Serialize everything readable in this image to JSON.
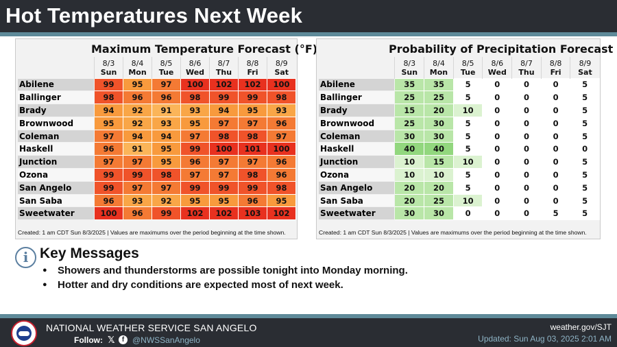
{
  "header": {
    "title": "Hot Temperatures Next Week"
  },
  "max_temp": {
    "title": "Maximum Temperature Forecast (°F)",
    "days": [
      {
        "date": "8/3",
        "day": "Sun"
      },
      {
        "date": "8/4",
        "day": "Mon"
      },
      {
        "date": "8/5",
        "day": "Tue"
      },
      {
        "date": "8/6",
        "day": "Wed"
      },
      {
        "date": "8/7",
        "day": "Thu"
      },
      {
        "date": "8/8",
        "day": "Fri"
      },
      {
        "date": "8/9",
        "day": "Sat"
      }
    ],
    "rows": [
      {
        "loc": "Abilene",
        "values": [
          99,
          95,
          97,
          100,
          102,
          102,
          100
        ]
      },
      {
        "loc": "Ballinger",
        "values": [
          98,
          96,
          96,
          98,
          99,
          99,
          98
        ]
      },
      {
        "loc": "Brady",
        "values": [
          94,
          92,
          91,
          93,
          94,
          95,
          93
        ]
      },
      {
        "loc": "Brownwood",
        "values": [
          95,
          92,
          93,
          95,
          97,
          97,
          96
        ]
      },
      {
        "loc": "Coleman",
        "values": [
          97,
          94,
          94,
          97,
          98,
          98,
          97
        ]
      },
      {
        "loc": "Haskell",
        "values": [
          96,
          91,
          95,
          99,
          100,
          101,
          100
        ]
      },
      {
        "loc": "Junction",
        "values": [
          97,
          97,
          95,
          96,
          97,
          97,
          96
        ]
      },
      {
        "loc": "Ozona",
        "values": [
          99,
          99,
          98,
          97,
          97,
          98,
          96
        ]
      },
      {
        "loc": "San Angelo",
        "values": [
          99,
          97,
          97,
          99,
          99,
          99,
          98
        ]
      },
      {
        "loc": "San Saba",
        "values": [
          96,
          93,
          92,
          95,
          95,
          96,
          95
        ]
      },
      {
        "loc": "Sweetwater",
        "values": [
          100,
          96,
          99,
          102,
          102,
          103,
          102
        ]
      }
    ],
    "note": "Created: 1 am CDT Sun 8/3/2025  |  Values are maximums over the period beginning at the time shown."
  },
  "pop": {
    "title": "Probability of Precipitation Forecast (%)",
    "days": [
      {
        "date": "8/3",
        "day": "Sun"
      },
      {
        "date": "8/4",
        "day": "Mon"
      },
      {
        "date": "8/5",
        "day": "Tue"
      },
      {
        "date": "8/6",
        "day": "Wed"
      },
      {
        "date": "8/7",
        "day": "Thu"
      },
      {
        "date": "8/8",
        "day": "Fri"
      },
      {
        "date": "8/9",
        "day": "Sat"
      }
    ],
    "rows": [
      {
        "loc": "Abilene",
        "values": [
          35,
          35,
          5,
          0,
          0,
          0,
          5
        ]
      },
      {
        "loc": "Ballinger",
        "values": [
          25,
          25,
          5,
          0,
          0,
          0,
          5
        ]
      },
      {
        "loc": "Brady",
        "values": [
          15,
          20,
          10,
          0,
          0,
          0,
          5
        ]
      },
      {
        "loc": "Brownwood",
        "values": [
          25,
          30,
          5,
          0,
          0,
          0,
          5
        ]
      },
      {
        "loc": "Coleman",
        "values": [
          30,
          30,
          5,
          0,
          0,
          0,
          5
        ]
      },
      {
        "loc": "Haskell",
        "values": [
          40,
          40,
          5,
          0,
          0,
          0,
          0
        ]
      },
      {
        "loc": "Junction",
        "values": [
          10,
          15,
          10,
          0,
          0,
          0,
          5
        ]
      },
      {
        "loc": "Ozona",
        "values": [
          10,
          10,
          5,
          0,
          0,
          0,
          5
        ]
      },
      {
        "loc": "San Angelo",
        "values": [
          20,
          20,
          5,
          0,
          0,
          0,
          5
        ]
      },
      {
        "loc": "San Saba",
        "values": [
          20,
          25,
          10,
          0,
          0,
          0,
          5
        ]
      },
      {
        "loc": "Sweetwater",
        "values": [
          30,
          30,
          0,
          0,
          0,
          5,
          5
        ]
      }
    ],
    "note": "Created: 1 am CDT Sun 8/3/2025  |  Values are maximums over the period beginning at the time shown."
  },
  "key_messages": {
    "title": "Key Messages",
    "icon": "info-icon",
    "items": [
      "Showers and thunderstorms are possible tonight into Monday morning.",
      "Hotter and dry conditions are expected most of next week."
    ]
  },
  "footer": {
    "org": "NATIONAL WEATHER SERVICE SAN ANGELO",
    "follow": "Follow:",
    "x_glyph": "𝕏",
    "fb_glyph": "f",
    "handle": "@NWSSanAngelo",
    "site": "weather.gov/SJT",
    "updated": "Updated: Sun Aug 03, 2025 2:01 AM"
  },
  "colors": {
    "header_bg": "#2a2d33",
    "accent_stripe": "#5e8a99",
    "info_blue": "#5b7fa0"
  }
}
